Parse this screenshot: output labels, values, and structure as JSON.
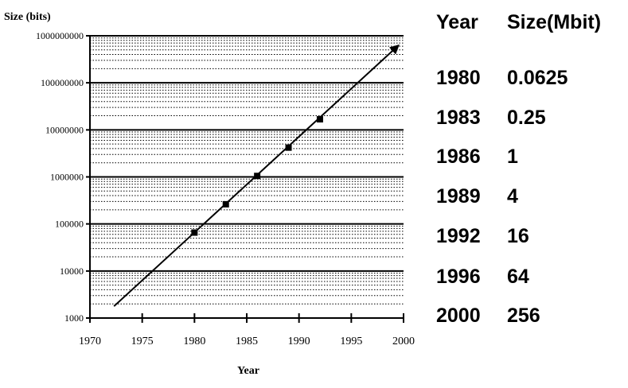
{
  "chart_data": {
    "type": "scatter",
    "ylabel": "Size (bits)",
    "xlabel": "Year",
    "xlim": [
      1970,
      2000
    ],
    "ylim": [
      1000,
      1000000000
    ],
    "yscale": "log",
    "grid": true,
    "x_ticks": [
      "1970",
      "1975",
      "1980",
      "1985",
      "1990",
      "1995",
      "2000"
    ],
    "y_ticks": [
      "1000",
      "10000",
      "100000",
      "1000000",
      "10000000",
      "100000000",
      "1000000000"
    ],
    "points": [
      {
        "x": 1980,
        "y": 65536
      },
      {
        "x": 1983,
        "y": 262144
      },
      {
        "x": 1986,
        "y": 1048576
      },
      {
        "x": 1989,
        "y": 4194304
      },
      {
        "x": 1992,
        "y": 16777216
      }
    ],
    "trendline": {
      "x": [
        1972.3,
        1999.5
      ],
      "y": [
        1780,
        620000000
      ],
      "arrow": true
    }
  },
  "table": {
    "headers": [
      "Year",
      "Size(Mbit)"
    ],
    "rows": [
      [
        "1980",
        "0.0625"
      ],
      [
        "1983",
        "0.25"
      ],
      [
        "1986",
        "1"
      ],
      [
        "1989",
        "4"
      ],
      [
        "1992",
        "16"
      ],
      [
        "1996",
        "64"
      ],
      [
        "2000",
        "256"
      ]
    ]
  }
}
